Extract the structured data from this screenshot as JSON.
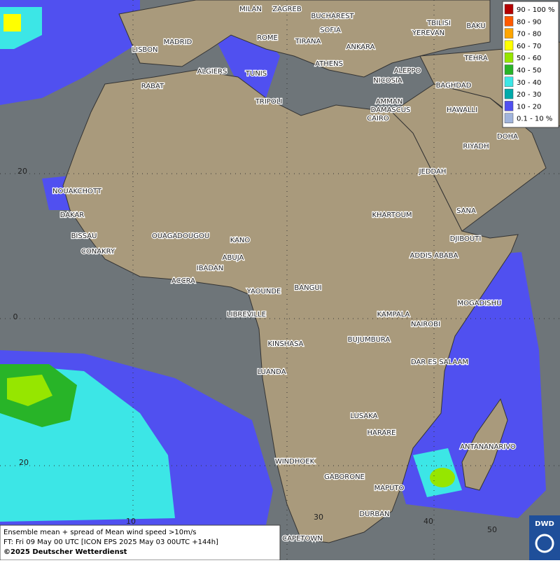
{
  "map": {
    "cities": [
      "MILAN",
      "ZAGREB",
      "BUCHAREST",
      "TBILISI",
      "BAKU",
      "YEREVAN",
      "TEHRA",
      "LISBON",
      "MADRID",
      "ROME",
      "SOFIA",
      "TIRANA",
      "ANKARA",
      "ATHENS",
      "ALGIERS",
      "TUNIS",
      "RABAT",
      "ALEPPO",
      "NICOSIA",
      "BAGHDAD",
      "DAMASCUS",
      "AMMAN",
      "TRIPOLI",
      "CAIRO",
      "HAWALLI",
      "DOHA",
      "RIYADH",
      "JEDDAH",
      "NOUAKCHOTT",
      "DAKAR",
      "SANA",
      "KHARTOUM",
      "BISSAU",
      "DJIBOUTI",
      "CONAKRY",
      "OUAGADOUGOU",
      "KANO",
      "ABUJA",
      "ADDIS ABABA",
      "IBADAN",
      "ACCRA",
      "YAOUNDE",
      "BANGUI",
      "MOGADISHU",
      "LIBREVILLE",
      "KAMPALA",
      "NAIROBI",
      "KINSHASA",
      "BUJUMBURA",
      "DAR ES SALAAM",
      "LUANDA",
      "LUSAKA",
      "HARARE",
      "ANTANANARIVO",
      "WINDHOEK",
      "GABORONE",
      "MAPUTO",
      "DURBAN",
      "CAPETOWN"
    ],
    "grid_labels": [
      "20",
      "0",
      "20",
      "10",
      "30",
      "40",
      "50"
    ],
    "legend": [
      {
        "label": "90 - 100 %",
        "color": "#b40000"
      },
      {
        "label": "80 - 90",
        "color": "#ff5a00"
      },
      {
        "label": "70 - 80",
        "color": "#ffa500"
      },
      {
        "label": "60 - 70",
        "color": "#ffff00"
      },
      {
        "label": "50 - 60",
        "color": "#96e600"
      },
      {
        "label": "40 - 50",
        "color": "#28b428"
      },
      {
        "label": "30 - 40",
        "color": "#3ce6e6"
      },
      {
        "label": "20 - 30",
        "color": "#00aaaa"
      },
      {
        "label": "10 - 20",
        "color": "#5050f0"
      },
      {
        "label": "0.1 - 10 %",
        "color": "#a0b4dc"
      }
    ],
    "footer": [
      "Ensemble mean + spread of Mean wind speed >10m/s",
      "FT: Fri 09 May 00 UTC [ICON EPS 2025 May 03 00UTC +144h]",
      "©2025 Deutscher Wetterdienst"
    ],
    "logo": "DWD"
  }
}
